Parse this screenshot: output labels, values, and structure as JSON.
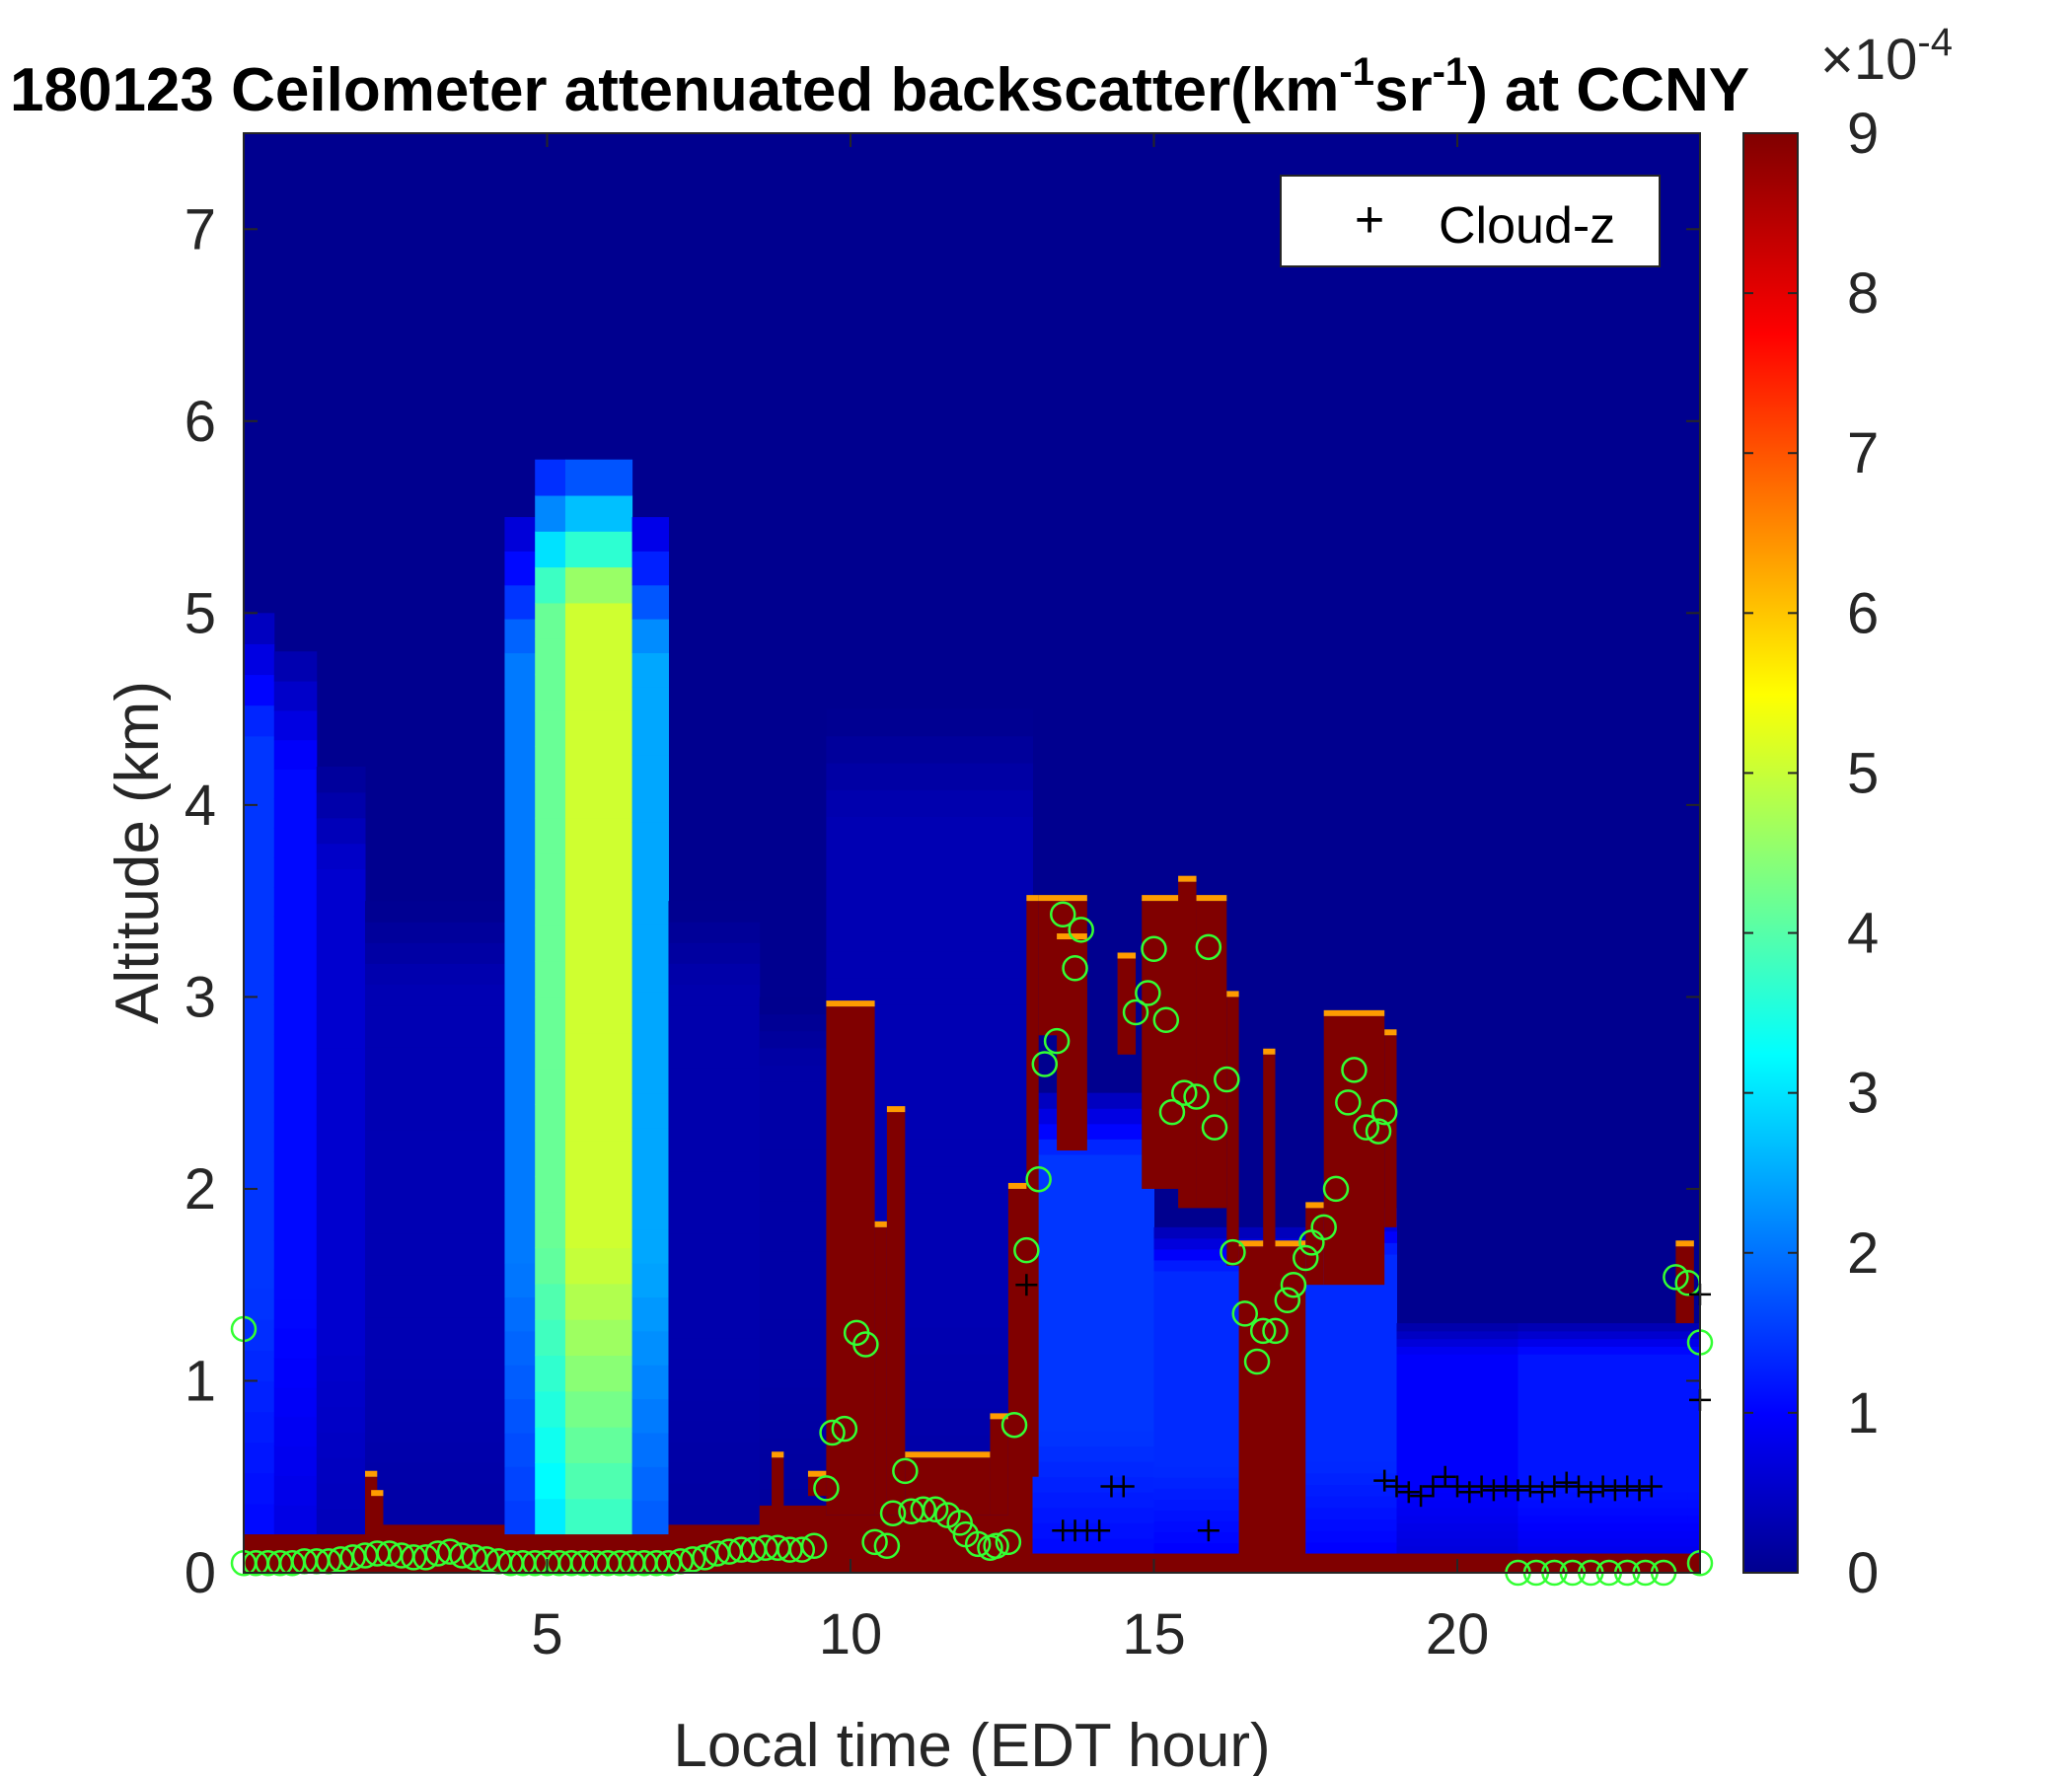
{
  "chart_data": {
    "type": "heatmap",
    "title": {
      "prefix": "180123 Ceilometer attenuated backscatter(km",
      "sup1": "-1",
      "mid": "sr",
      "sup2": "-1",
      "suffix": ") at CCNY"
    },
    "xlabel": "Local time (EDT hour)",
    "ylabel": "Altitude (km)",
    "xlim": [
      0,
      24
    ],
    "ylim": [
      0,
      7.5
    ],
    "xticks": [
      5,
      10,
      15,
      20
    ],
    "yticks": [
      0,
      1,
      2,
      3,
      4,
      5,
      6,
      7
    ],
    "colorbar": {
      "colormap": "jet",
      "clim": [
        0,
        9
      ],
      "ticks": [
        0,
        1,
        2,
        3,
        4,
        5,
        6,
        7,
        8,
        9
      ],
      "exponent_base": "×10",
      "exponent": "-4"
    },
    "legend": {
      "entries": [
        {
          "marker": "+",
          "label": "Cloud-z"
        }
      ],
      "location": "top-right"
    },
    "columns": [
      {
        "t0": 0.0,
        "t1": 0.5,
        "pbl": 0.2,
        "haze_top": 5.0,
        "haze_val": 1.6
      },
      {
        "t0": 0.5,
        "t1": 1.2,
        "pbl": 0.2,
        "haze_top": 4.8,
        "haze_val": 1.2
      },
      {
        "t0": 1.2,
        "t1": 2.0,
        "pbl": 0.2,
        "haze_top": 4.2,
        "haze_val": 0.7
      },
      {
        "t0": 2.0,
        "t1": 4.3,
        "pbl": 0.25,
        "haze_top": 3.5,
        "haze_val": 0.45
      },
      {
        "t0": 4.3,
        "t1": 4.8,
        "pbl": 0.2,
        "haze_top": 5.5,
        "haze_val": 2.2
      },
      {
        "t0": 4.8,
        "t1": 5.3,
        "pbl": 0.2,
        "haze_top": 5.8,
        "haze_val": 4.3
      },
      {
        "t0": 5.3,
        "t1": 6.4,
        "pbl": 0.2,
        "haze_top": 5.8,
        "haze_val": 5.2
      },
      {
        "t0": 6.4,
        "t1": 7.0,
        "pbl": 0.2,
        "haze_top": 5.5,
        "haze_val": 2.6
      },
      {
        "t0": 7.0,
        "t1": 8.5,
        "pbl": 0.25,
        "haze_top": 3.5,
        "haze_val": 0.4
      },
      {
        "t0": 8.5,
        "t1": 9.6,
        "pbl": 0.35,
        "haze_top": 3.0,
        "haze_val": 0.35
      },
      {
        "t0": 9.6,
        "t1": 13.0,
        "pbl": 0.3,
        "haze_top": 4.5,
        "haze_val": 0.45
      },
      {
        "t0": 13.0,
        "t1": 15.0,
        "pbl": 0.1,
        "haze_top": 2.5,
        "haze_val": 1.6
      },
      {
        "t0": 15.0,
        "t1": 17.5,
        "pbl": 0.1,
        "haze_top": 1.8,
        "haze_val": 1.5
      },
      {
        "t0": 17.5,
        "t1": 19.0,
        "pbl": 0.1,
        "haze_top": 1.9,
        "haze_val": 1.5
      },
      {
        "t0": 19.0,
        "t1": 21.0,
        "pbl": 0.1,
        "haze_top": 1.3,
        "haze_val": 1.1
      },
      {
        "t0": 21.0,
        "t1": 23.8,
        "pbl": 0.1,
        "haze_top": 1.3,
        "haze_val": 1.3
      },
      {
        "t0": 23.8,
        "t1": 24.0,
        "pbl": 0.1,
        "haze_top": 1.3,
        "haze_val": 1.3
      }
    ],
    "clouds": [
      {
        "t0": 2.0,
        "t1": 2.2,
        "base": 0.2,
        "top": 0.5
      },
      {
        "t0": 2.1,
        "t1": 2.3,
        "base": 0.2,
        "top": 0.4
      },
      {
        "t0": 8.7,
        "t1": 8.9,
        "base": 0.3,
        "top": 0.6
      },
      {
        "t0": 9.3,
        "t1": 9.6,
        "base": 0.4,
        "top": 0.5
      },
      {
        "t0": 9.6,
        "t1": 10.4,
        "base": 0.3,
        "top": 2.95
      },
      {
        "t0": 10.4,
        "t1": 10.6,
        "base": 0.3,
        "top": 1.8
      },
      {
        "t0": 10.6,
        "t1": 10.9,
        "base": 0.3,
        "top": 2.4
      },
      {
        "t0": 10.9,
        "t1": 12.3,
        "base": 0.3,
        "top": 0.6
      },
      {
        "t0": 12.3,
        "t1": 12.6,
        "base": 0.3,
        "top": 0.8
      },
      {
        "t0": 12.6,
        "t1": 13.0,
        "base": 0.1,
        "top": 2.0
      },
      {
        "t0": 12.9,
        "t1": 13.1,
        "base": 0.5,
        "top": 3.5
      },
      {
        "t0": 13.1,
        "t1": 13.9,
        "base": 2.8,
        "top": 3.5
      },
      {
        "t0": 13.4,
        "t1": 13.9,
        "base": 2.2,
        "top": 3.3
      },
      {
        "t0": 14.4,
        "t1": 14.7,
        "base": 2.7,
        "top": 3.2
      },
      {
        "t0": 14.8,
        "t1": 15.7,
        "base": 2.0,
        "top": 3.5
      },
      {
        "t0": 15.4,
        "t1": 15.7,
        "base": 1.9,
        "top": 3.6
      },
      {
        "t0": 15.7,
        "t1": 16.2,
        "base": 1.9,
        "top": 3.5
      },
      {
        "t0": 16.2,
        "t1": 16.4,
        "base": 1.6,
        "top": 3.0
      },
      {
        "t0": 16.4,
        "t1": 17.5,
        "base": 0.0,
        "top": 1.7
      },
      {
        "t0": 16.8,
        "t1": 17.0,
        "base": 0.0,
        "top": 2.7
      },
      {
        "t0": 17.5,
        "t1": 17.8,
        "base": 1.5,
        "top": 1.9
      },
      {
        "t0": 17.8,
        "t1": 18.8,
        "base": 1.5,
        "top": 2.9
      },
      {
        "t0": 18.8,
        "t1": 19.0,
        "base": 1.8,
        "top": 2.8
      },
      {
        "t0": 23.6,
        "t1": 23.9,
        "base": 1.3,
        "top": 1.7
      }
    ],
    "cloud_z": [
      {
        "x": 12.9,
        "y": 1.5
      },
      {
        "x": 13.5,
        "y": 0.22
      },
      {
        "x": 13.7,
        "y": 0.22
      },
      {
        "x": 13.9,
        "y": 0.22
      },
      {
        "x": 14.1,
        "y": 0.22
      },
      {
        "x": 14.3,
        "y": 0.45
      },
      {
        "x": 14.5,
        "y": 0.45
      },
      {
        "x": 15.9,
        "y": 0.22
      },
      {
        "x": 18.8,
        "y": 0.48
      },
      {
        "x": 19.0,
        "y": 0.45
      },
      {
        "x": 19.2,
        "y": 0.42
      },
      {
        "x": 19.4,
        "y": 0.4
      },
      {
        "x": 19.6,
        "y": 0.45
      },
      {
        "x": 19.8,
        "y": 0.5
      },
      {
        "x": 20.0,
        "y": 0.45
      },
      {
        "x": 20.2,
        "y": 0.42
      },
      {
        "x": 20.4,
        "y": 0.45
      },
      {
        "x": 20.6,
        "y": 0.43
      },
      {
        "x": 20.8,
        "y": 0.45
      },
      {
        "x": 21.0,
        "y": 0.43
      },
      {
        "x": 21.2,
        "y": 0.45
      },
      {
        "x": 21.4,
        "y": 0.42
      },
      {
        "x": 21.6,
        "y": 0.45
      },
      {
        "x": 21.8,
        "y": 0.47
      },
      {
        "x": 22.0,
        "y": 0.45
      },
      {
        "x": 22.2,
        "y": 0.42
      },
      {
        "x": 22.4,
        "y": 0.45
      },
      {
        "x": 22.6,
        "y": 0.43
      },
      {
        "x": 22.8,
        "y": 0.45
      },
      {
        "x": 23.0,
        "y": 0.43
      },
      {
        "x": 23.2,
        "y": 0.45
      },
      {
        "x": 24.0,
        "y": 1.45
      },
      {
        "x": 24.0,
        "y": 0.9
      }
    ],
    "pbl_height": [
      {
        "x": 0.0,
        "y": 1.27
      },
      {
        "x": 0.0,
        "y": 0.05
      },
      {
        "x": 0.2,
        "y": 0.05
      },
      {
        "x": 0.4,
        "y": 0.05
      },
      {
        "x": 0.6,
        "y": 0.05
      },
      {
        "x": 0.8,
        "y": 0.05
      },
      {
        "x": 1.0,
        "y": 0.06
      },
      {
        "x": 1.2,
        "y": 0.06
      },
      {
        "x": 1.4,
        "y": 0.06
      },
      {
        "x": 1.6,
        "y": 0.07
      },
      {
        "x": 1.8,
        "y": 0.08
      },
      {
        "x": 2.0,
        "y": 0.09
      },
      {
        "x": 2.2,
        "y": 0.1
      },
      {
        "x": 2.4,
        "y": 0.1
      },
      {
        "x": 2.6,
        "y": 0.09
      },
      {
        "x": 2.8,
        "y": 0.08
      },
      {
        "x": 3.0,
        "y": 0.08
      },
      {
        "x": 3.2,
        "y": 0.1
      },
      {
        "x": 3.4,
        "y": 0.11
      },
      {
        "x": 3.6,
        "y": 0.09
      },
      {
        "x": 3.8,
        "y": 0.08
      },
      {
        "x": 4.0,
        "y": 0.07
      },
      {
        "x": 4.2,
        "y": 0.06
      },
      {
        "x": 4.4,
        "y": 0.05
      },
      {
        "x": 4.6,
        "y": 0.05
      },
      {
        "x": 4.8,
        "y": 0.05
      },
      {
        "x": 5.0,
        "y": 0.05
      },
      {
        "x": 5.2,
        "y": 0.05
      },
      {
        "x": 5.4,
        "y": 0.05
      },
      {
        "x": 5.6,
        "y": 0.05
      },
      {
        "x": 5.8,
        "y": 0.05
      },
      {
        "x": 6.0,
        "y": 0.05
      },
      {
        "x": 6.2,
        "y": 0.05
      },
      {
        "x": 6.4,
        "y": 0.05
      },
      {
        "x": 6.6,
        "y": 0.05
      },
      {
        "x": 6.8,
        "y": 0.05
      },
      {
        "x": 7.0,
        "y": 0.05
      },
      {
        "x": 7.2,
        "y": 0.06
      },
      {
        "x": 7.4,
        "y": 0.07
      },
      {
        "x": 7.6,
        "y": 0.08
      },
      {
        "x": 7.8,
        "y": 0.1
      },
      {
        "x": 8.0,
        "y": 0.11
      },
      {
        "x": 8.2,
        "y": 0.12
      },
      {
        "x": 8.4,
        "y": 0.12
      },
      {
        "x": 8.6,
        "y": 0.13
      },
      {
        "x": 8.8,
        "y": 0.13
      },
      {
        "x": 9.0,
        "y": 0.12
      },
      {
        "x": 9.2,
        "y": 0.12
      },
      {
        "x": 9.4,
        "y": 0.14
      },
      {
        "x": 9.6,
        "y": 0.44
      },
      {
        "x": 9.7,
        "y": 0.73
      },
      {
        "x": 9.9,
        "y": 0.75
      },
      {
        "x": 10.1,
        "y": 1.25
      },
      {
        "x": 10.25,
        "y": 1.19
      },
      {
        "x": 10.4,
        "y": 0.16
      },
      {
        "x": 10.6,
        "y": 0.14
      },
      {
        "x": 10.7,
        "y": 0.31
      },
      {
        "x": 10.9,
        "y": 0.53
      },
      {
        "x": 11.0,
        "y": 0.32
      },
      {
        "x": 11.2,
        "y": 0.33
      },
      {
        "x": 11.4,
        "y": 0.33
      },
      {
        "x": 11.6,
        "y": 0.3
      },
      {
        "x": 11.8,
        "y": 0.26
      },
      {
        "x": 11.9,
        "y": 0.2
      },
      {
        "x": 12.1,
        "y": 0.15
      },
      {
        "x": 12.3,
        "y": 0.13
      },
      {
        "x": 12.4,
        "y": 0.14
      },
      {
        "x": 12.6,
        "y": 0.16
      },
      {
        "x": 12.7,
        "y": 0.77
      },
      {
        "x": 12.9,
        "y": 1.68
      },
      {
        "x": 13.1,
        "y": 2.05
      },
      {
        "x": 13.2,
        "y": 2.65
      },
      {
        "x": 13.4,
        "y": 2.77
      },
      {
        "x": 13.5,
        "y": 3.43
      },
      {
        "x": 13.7,
        "y": 3.15
      },
      {
        "x": 13.8,
        "y": 3.35
      },
      {
        "x": 14.7,
        "y": 2.92
      },
      {
        "x": 14.9,
        "y": 3.02
      },
      {
        "x": 15.0,
        "y": 3.25
      },
      {
        "x": 15.2,
        "y": 2.88
      },
      {
        "x": 15.3,
        "y": 2.4
      },
      {
        "x": 15.5,
        "y": 2.5
      },
      {
        "x": 15.7,
        "y": 2.48
      },
      {
        "x": 15.9,
        "y": 3.26
      },
      {
        "x": 16.0,
        "y": 2.32
      },
      {
        "x": 16.2,
        "y": 2.57
      },
      {
        "x": 16.3,
        "y": 1.67
      },
      {
        "x": 16.5,
        "y": 1.35
      },
      {
        "x": 16.7,
        "y": 1.1
      },
      {
        "x": 16.8,
        "y": 1.26
      },
      {
        "x": 17.0,
        "y": 1.26
      },
      {
        "x": 17.2,
        "y": 1.42
      },
      {
        "x": 17.3,
        "y": 1.5
      },
      {
        "x": 17.5,
        "y": 1.64
      },
      {
        "x": 17.6,
        "y": 1.72
      },
      {
        "x": 17.8,
        "y": 1.8
      },
      {
        "x": 18.0,
        "y": 2.0
      },
      {
        "x": 18.2,
        "y": 2.45
      },
      {
        "x": 18.3,
        "y": 2.62
      },
      {
        "x": 18.5,
        "y": 2.32
      },
      {
        "x": 18.7,
        "y": 2.3
      },
      {
        "x": 18.8,
        "y": 2.4
      },
      {
        "x": 21.0,
        "y": 0.0
      },
      {
        "x": 21.3,
        "y": 0.0
      },
      {
        "x": 21.6,
        "y": 0.0
      },
      {
        "x": 21.9,
        "y": 0.0
      },
      {
        "x": 22.2,
        "y": 0.0
      },
      {
        "x": 22.5,
        "y": 0.0
      },
      {
        "x": 22.8,
        "y": 0.0
      },
      {
        "x": 23.1,
        "y": 0.0
      },
      {
        "x": 23.4,
        "y": 0.0
      },
      {
        "x": 23.6,
        "y": 1.54
      },
      {
        "x": 23.8,
        "y": 1.51
      },
      {
        "x": 24.0,
        "y": 1.2
      },
      {
        "x": 24.0,
        "y": 0.05
      }
    ]
  }
}
